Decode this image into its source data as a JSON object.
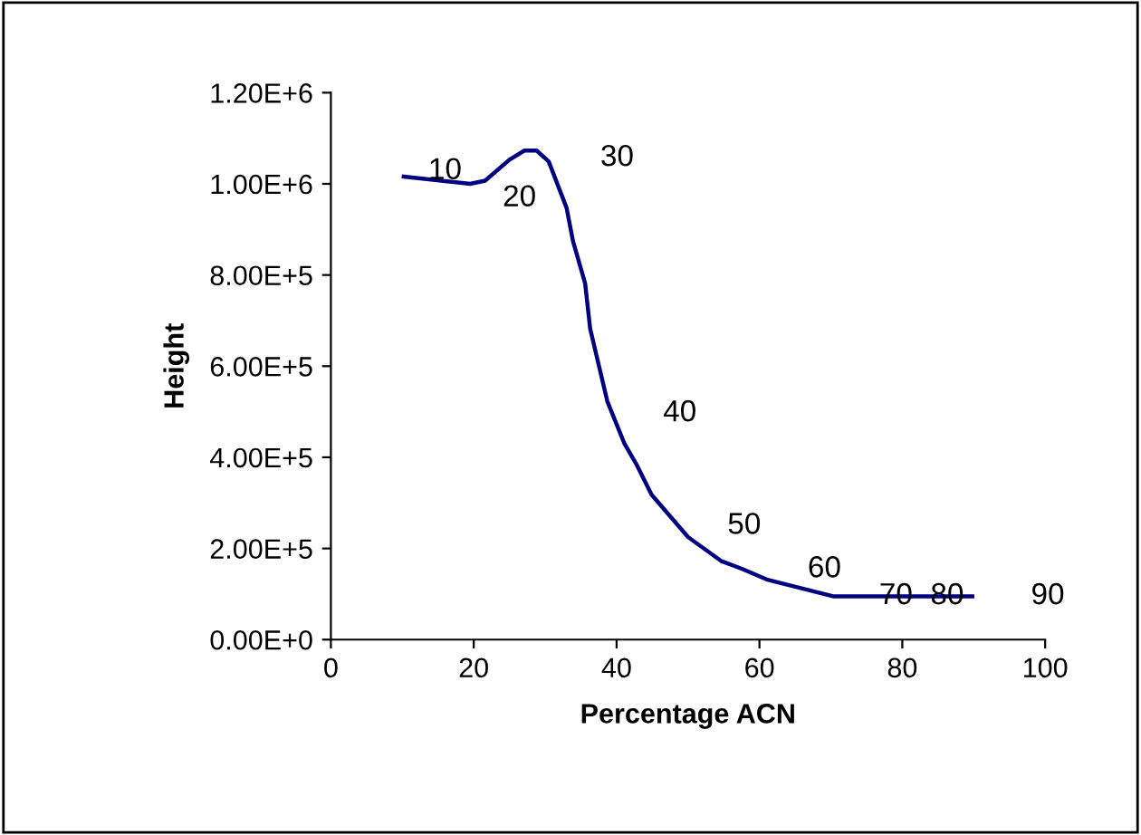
{
  "chart_data": {
    "type": "line",
    "xlabel": "Percentage ACN",
    "ylabel": "Height",
    "series": [
      {
        "color": "#000080",
        "x": [
          10.2,
          19.5,
          21.6,
          25,
          27.1,
          28.8,
          30.5,
          33,
          33.9,
          35.6,
          36.3,
          38.7,
          41.1,
          42.8,
          44.9,
          50,
          54.7,
          57.6,
          61,
          70.3,
          89.8
        ],
        "values": [
          1016000,
          1000000,
          1007000,
          1053000,
          1073000,
          1073000,
          1049000,
          947000,
          874000,
          781000,
          682000,
          523000,
          430000,
          384000,
          318000,
          225000,
          172000,
          155000,
          132000,
          95000,
          95000
        ]
      }
    ],
    "xlim": [
      0,
      100
    ],
    "xticks": [
      0,
      20,
      40,
      60,
      80,
      100
    ],
    "ylim": [
      0,
      1200000
    ],
    "yticks": [
      {
        "value": 0,
        "label": "0.00E+0"
      },
      {
        "value": 200000,
        "label": "2.00E+5"
      },
      {
        "value": 400000,
        "label": "4.00E+5"
      },
      {
        "value": 600000,
        "label": "6.00E+5"
      },
      {
        "value": 800000,
        "label": "8.00E+5"
      },
      {
        "value": 1000000,
        "label": "1.00E+6"
      },
      {
        "value": 1200000,
        "label": "1.20E+6"
      }
    ],
    "annotations": [
      {
        "text": "10",
        "x": 19.5,
        "y": 1000000
      },
      {
        "text": "20",
        "x": 27.1,
        "y": 1073000
      },
      {
        "text": "30",
        "x": 28.8,
        "y": 1073000
      },
      {
        "text": "40",
        "x": 41.1,
        "y": 430000
      },
      {
        "text": "50",
        "x": 54.7,
        "y": 172000
      },
      {
        "text": "60",
        "x": 61,
        "y": 132000
      },
      {
        "text": "70",
        "x": 70.3,
        "y": 95000
      },
      {
        "text": "80",
        "x": 89.8,
        "y": 95000
      },
      {
        "text": "90",
        "x": 89.8,
        "y": 95000
      }
    ],
    "grid": false,
    "marker": "none",
    "line_style": "solid"
  }
}
